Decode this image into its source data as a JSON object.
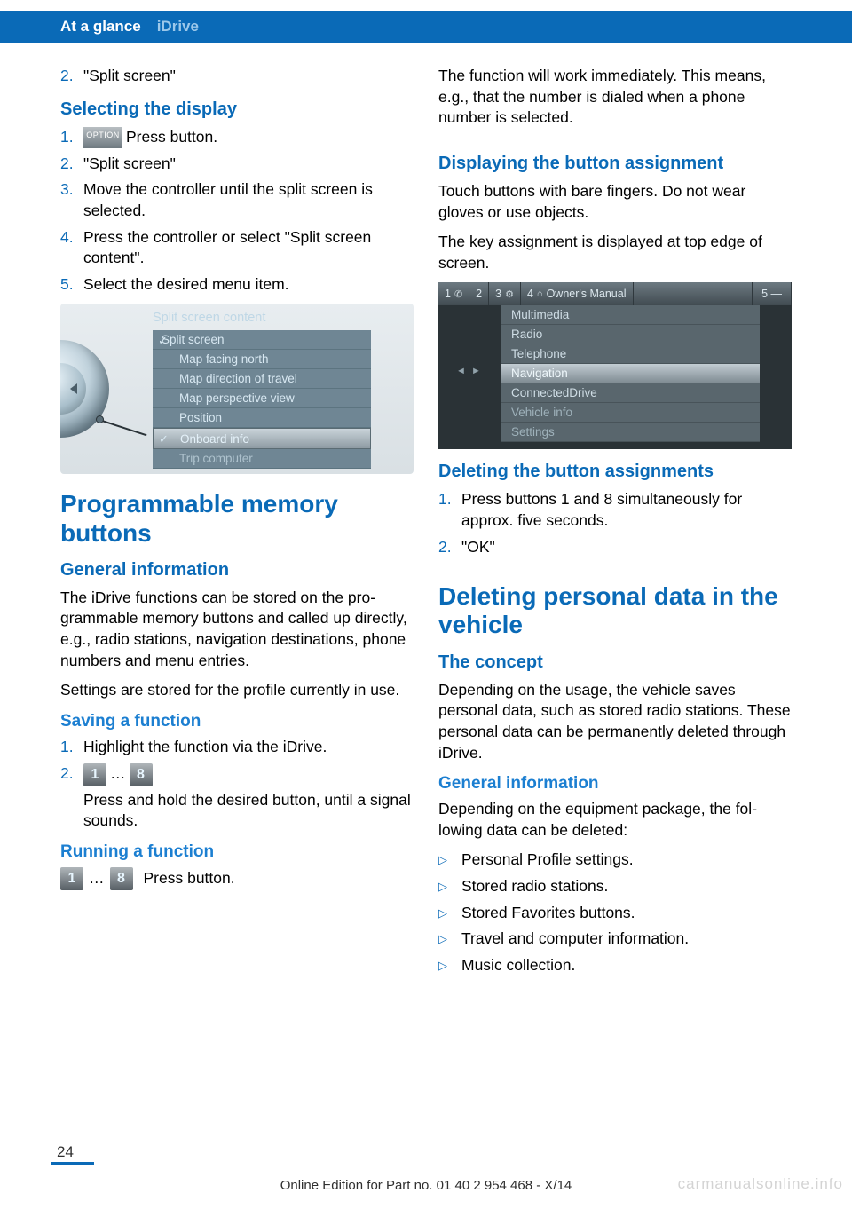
{
  "colors": {
    "brand": "#0a6ab7",
    "light_blue": "#1c7fd1",
    "header_sub": "#9cc8ea",
    "text": "#000000",
    "bg": "#ffffff",
    "screen_bg": "#6f8694",
    "screen_text": "#d8e8f2"
  },
  "header": {
    "section": "At a glance",
    "subsection": "iDrive"
  },
  "left": {
    "pre_item": {
      "num": "2.",
      "text": "\"Split screen\""
    },
    "h_selecting": "Selecting the display",
    "steps": [
      {
        "num": "1.",
        "btn": "OPTION",
        "tail": " Press button."
      },
      {
        "num": "2.",
        "text": "\"Split screen\""
      },
      {
        "num": "3.",
        "text": "Move the controller until the split screen is selected."
      },
      {
        "num": "4.",
        "text": "Press the controller or select \"Split screen content\"."
      },
      {
        "num": "5.",
        "text": "Select the desired menu item."
      }
    ],
    "screen1": {
      "title": "Split screen content",
      "items": [
        {
          "label": "Split screen",
          "checked": true,
          "first": true
        },
        {
          "label": "Map facing north"
        },
        {
          "label": "Map direction of travel"
        },
        {
          "label": "Map perspective view"
        },
        {
          "label": "Position"
        },
        {
          "label": "Onboard info",
          "highlight": true,
          "checked": true
        },
        {
          "label": "Trip computer",
          "dim": true
        }
      ]
    },
    "h_pm": "Programmable memory buttons",
    "h_gi": "General information",
    "p_gi1": "The iDrive functions can be stored on the pro­grammable memory buttons and called up di­rectly, e.g., radio stations, navigation destina­tions, phone numbers and menu entries.",
    "p_gi2": "Settings are stored for the profile currently in use.",
    "h_save": "Saving a function",
    "save_steps": [
      {
        "num": "1.",
        "text": "Highlight the function via the iDrive."
      },
      {
        "num": "2.",
        "b1": "1",
        "mid": "   ",
        "b2": "8",
        "tail": " Press and hold the desired button, until a signal sounds."
      }
    ],
    "ellipsis": "…",
    "h_run": "Running a function",
    "run": {
      "b1": "1",
      "mid": "…",
      "b2": "8",
      "tail": "Press button."
    }
  },
  "right": {
    "p_intro": "The function will work immediately. This means, e.g., that the number is dialed when a phone number is selected.",
    "h_disp": "Displaying the button assignment",
    "p_disp1": "Touch buttons with bare fingers. Do not wear gloves or use objects.",
    "p_disp2": "The key assignment is displayed at top edge of screen.",
    "screen2": {
      "tabs": [
        {
          "n": "1",
          "g": "✆"
        },
        {
          "n": "2",
          "g": ""
        },
        {
          "n": "3",
          "g": "⚙"
        },
        {
          "n": "4",
          "g": "⌂",
          "label": "Owner's Manual"
        }
      ],
      "tab_r": "5 —",
      "items": [
        {
          "label": "Multimedia"
        },
        {
          "label": "Radio"
        },
        {
          "label": "Telephone"
        },
        {
          "label": "Navigation",
          "hi": true
        },
        {
          "label": "ConnectedDrive"
        },
        {
          "label": "Vehicle info",
          "dim": true
        },
        {
          "label": "Settings",
          "dim": true
        }
      ]
    },
    "h_del": "Deleting the button assignments",
    "del_steps": [
      {
        "num": "1.",
        "text": "Press buttons 1 and 8 simultaneously for approx. five seconds."
      },
      {
        "num": "2.",
        "text": "\"OK\""
      }
    ],
    "h_dp": "Deleting personal data in the vehicle",
    "h_concept": "The concept",
    "p_concept": "Depending on the usage, the vehicle saves personal data, such as stored radio stations. These personal data can be permanently de­leted through iDrive.",
    "h_gi2": "General information",
    "p_gi2": "Depending on the equipment package, the fol­lowing data can be deleted:",
    "bullets": [
      "Personal Profile settings.",
      "Stored radio stations.",
      "Stored Favorites buttons.",
      "Travel and computer information.",
      "Music collection."
    ]
  },
  "footer": {
    "page": "24",
    "line": "Online Edition for Part no. 01 40 2 954 468 - X/14",
    "watermark": "carmanualsonline.info"
  }
}
